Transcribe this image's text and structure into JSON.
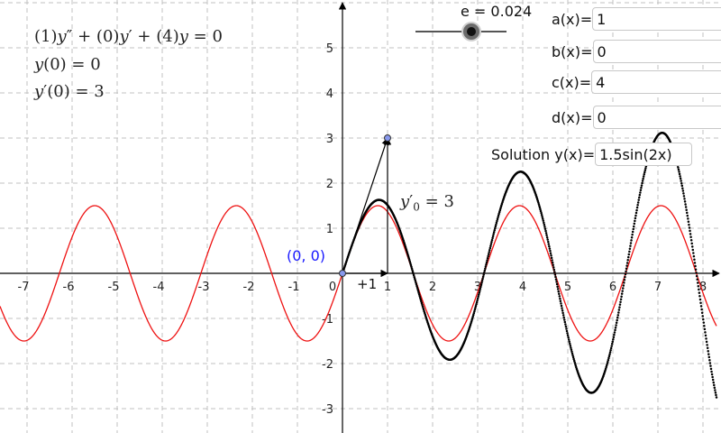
{
  "equations": {
    "ode_a": "(1)",
    "ode_mid_1": "+ (0)",
    "ode_mid_2": "+ (4)",
    "ode_end": "= 0",
    "ic1_value": "= 0",
    "ic2_value": "= 3"
  },
  "slider": {
    "label": "e = 0.024",
    "value": 0.024
  },
  "fields": {
    "a_label": "a(x)=",
    "a_value": "1",
    "b_label": "b(x)=",
    "b_value": "0",
    "c_label": "c(x)=",
    "c_value": "4",
    "d_label": "d(x)=",
    "d_value": "0",
    "solution_label": "Solution y(x)=",
    "solution_value": "1.5sin(2x)"
  },
  "annotations": {
    "origin_point": "(0, 0)",
    "step_label": "+1",
    "derivative_value": "= 3"
  },
  "colors": {
    "exact_curve": "#ee1111",
    "approx_curve": "#000000",
    "origin_text": "#1a1aff",
    "grid": "#c0c0c0",
    "point_fill": "#8899ee"
  },
  "chart_data": {
    "type": "line",
    "x_ticks": [
      "-7",
      "-6",
      "-5",
      "-4",
      "-3",
      "-2",
      "-1",
      "0",
      "1",
      "2",
      "3",
      "4",
      "5",
      "6",
      "7",
      "8"
    ],
    "y_ticks": [
      "-3",
      "-2",
      "-1",
      "1",
      "2",
      "3",
      "4",
      "5"
    ],
    "xlim": [
      -7.6,
      8.3
    ],
    "ylim": [
      -3.5,
      5.9
    ],
    "grid": true,
    "series": [
      {
        "expression": "1.5sin(2x)",
        "style": "solid",
        "domain": [
          -7.6,
          8.3
        ]
      },
      {
        "style": "dotted",
        "domain": [
          0,
          8.3
        ],
        "growth_factor_e": 0.024
      }
    ],
    "points": [
      {
        "x": 0,
        "y": 0
      },
      {
        "x": 1,
        "y": 3
      }
    ],
    "vectors": [
      {
        "from": [
          0,
          0
        ],
        "to": [
          1,
          3
        ]
      },
      {
        "from": [
          0,
          0
        ],
        "to": [
          1,
          0
        ]
      },
      {
        "from": [
          1,
          0
        ],
        "to": [
          1,
          3
        ]
      }
    ]
  }
}
